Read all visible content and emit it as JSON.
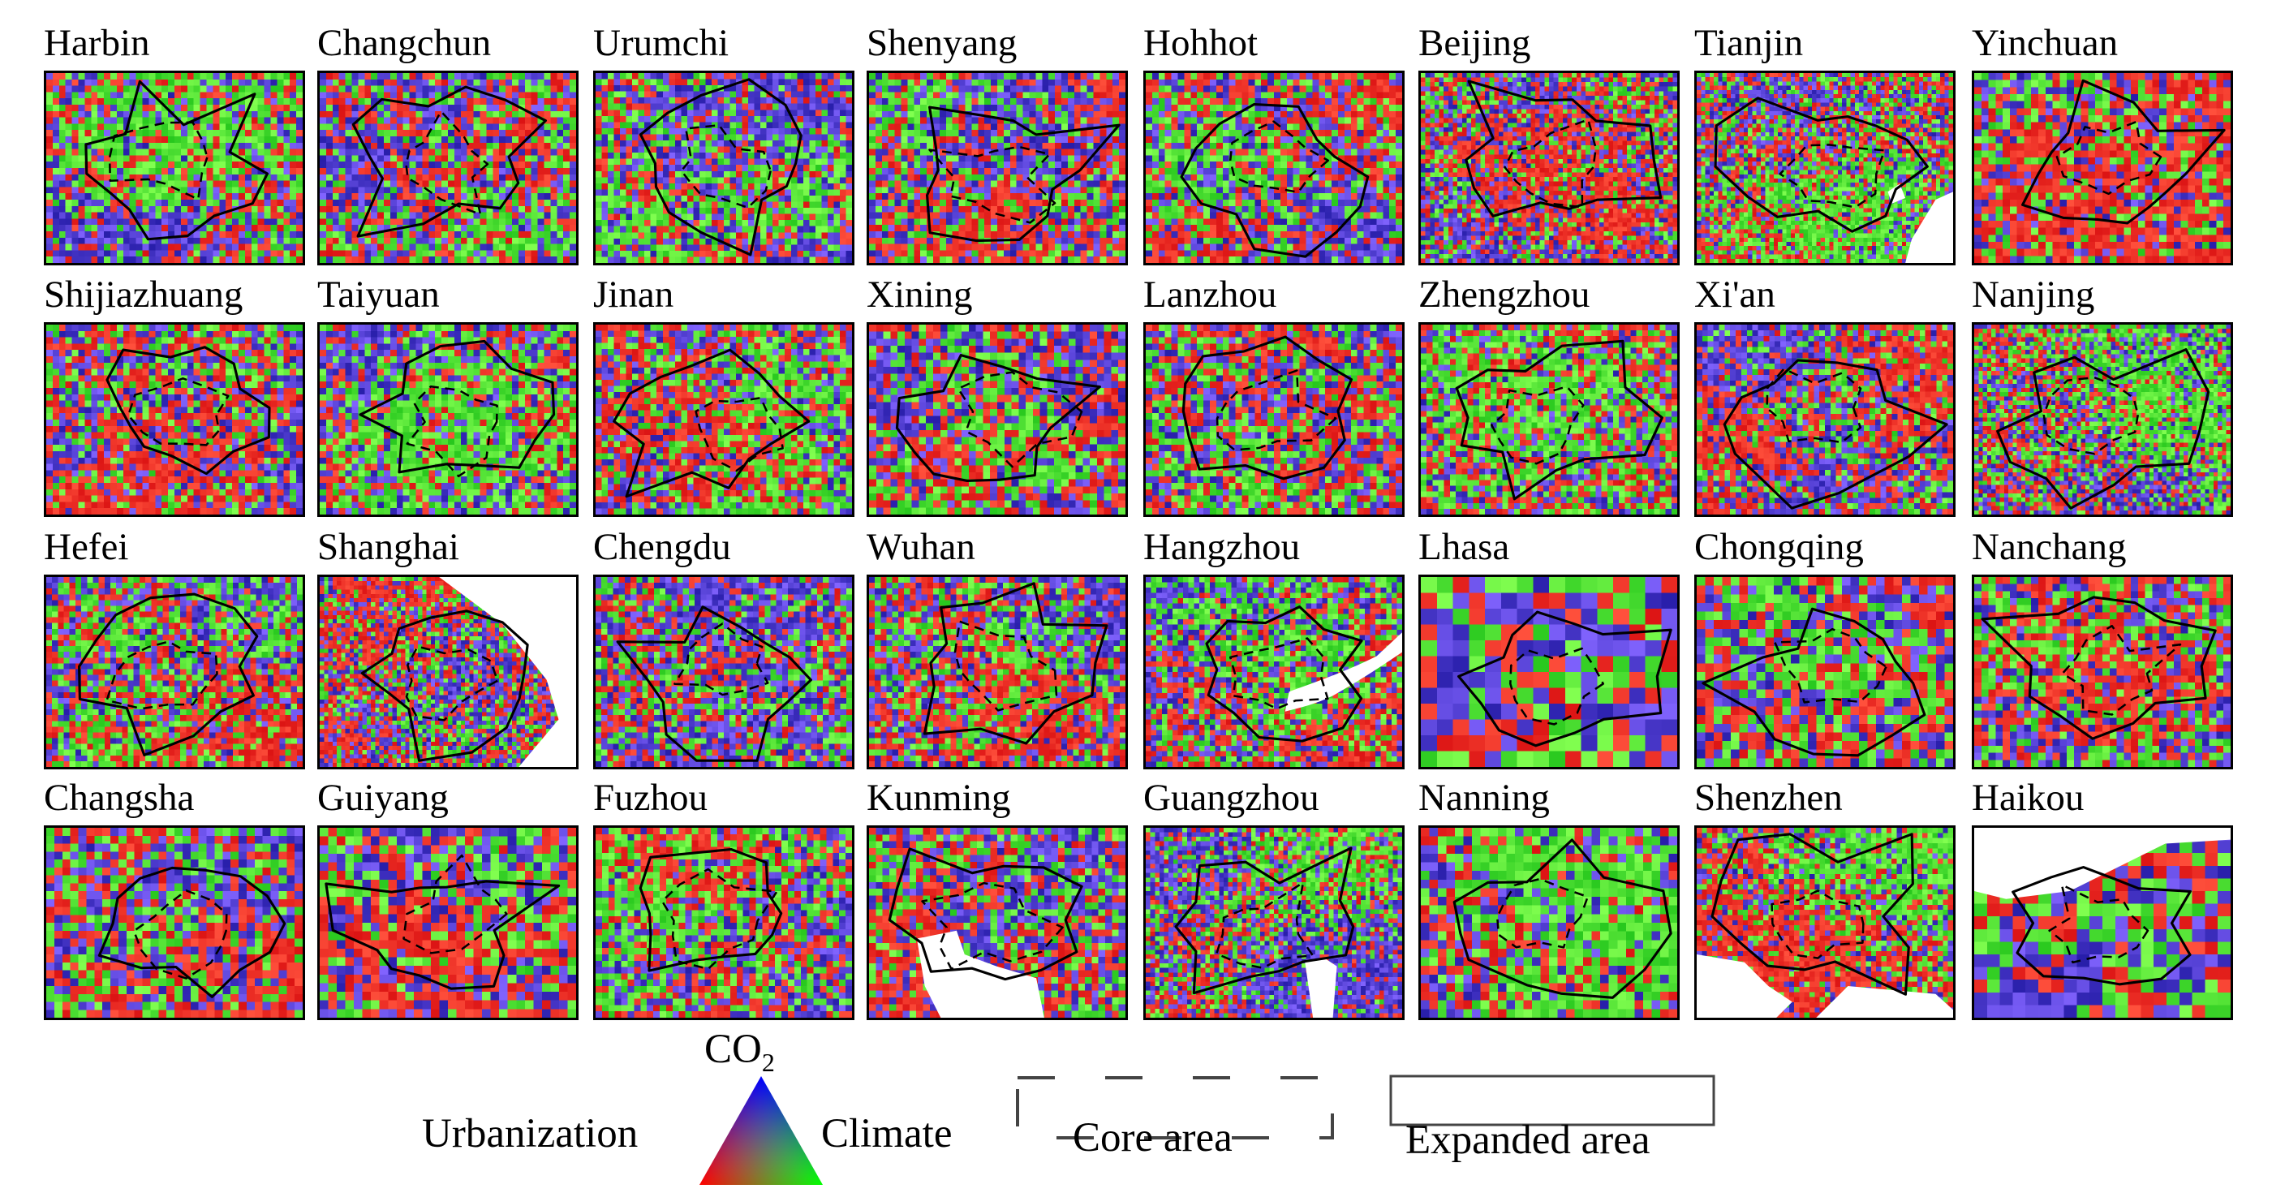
{
  "cities": [
    {
      "name": "Harbin",
      "white": ""
    },
    {
      "name": "Changchun",
      "white": ""
    },
    {
      "name": "Urumchi",
      "white": ""
    },
    {
      "name": "Shenyang",
      "white": ""
    },
    {
      "name": "Hohhot",
      "white": ""
    },
    {
      "name": "Beijing",
      "white": ""
    },
    {
      "name": "Tianjin",
      "white": "coast-right"
    },
    {
      "name": "Yinchuan",
      "white": ""
    },
    {
      "name": "Shijiazhuang",
      "white": ""
    },
    {
      "name": "Taiyuan",
      "white": ""
    },
    {
      "name": "Jinan",
      "white": ""
    },
    {
      "name": "Xining",
      "white": ""
    },
    {
      "name": "Lanzhou",
      "white": ""
    },
    {
      "name": "Zhengzhou",
      "white": ""
    },
    {
      "name": "Xi'an",
      "white": ""
    },
    {
      "name": "Nanjing",
      "white": ""
    },
    {
      "name": "Hefei",
      "white": ""
    },
    {
      "name": "Shanghai",
      "white": "sea-right"
    },
    {
      "name": "Chengdu",
      "white": ""
    },
    {
      "name": "Wuhan",
      "white": ""
    },
    {
      "name": "Hangzhou",
      "white": "river"
    },
    {
      "name": "Lhasa",
      "white": ""
    },
    {
      "name": "Chongqing",
      "white": ""
    },
    {
      "name": "Nanchang",
      "white": ""
    },
    {
      "name": "Changsha",
      "white": ""
    },
    {
      "name": "Guiyang",
      "white": ""
    },
    {
      "name": "Fuzhou",
      "white": ""
    },
    {
      "name": "Kunming",
      "white": "lake"
    },
    {
      "name": "Guangzhou",
      "white": "estuary"
    },
    {
      "name": "Nanning",
      "white": ""
    },
    {
      "name": "Shenzhen",
      "white": "bay"
    },
    {
      "name": "Haikou",
      "white": "sea-top"
    }
  ],
  "legend": {
    "triangle_top_label": "CO",
    "triangle_top_subscript": "2",
    "triangle_left_label": "Urbanization",
    "triangle_right_label": "Climate",
    "core_area_label": "Core area",
    "expanded_area_label": "Expanded area",
    "colors": {
      "urbanization": "#ff0000",
      "co2": "#0000ff",
      "climate": "#00ff00"
    }
  }
}
